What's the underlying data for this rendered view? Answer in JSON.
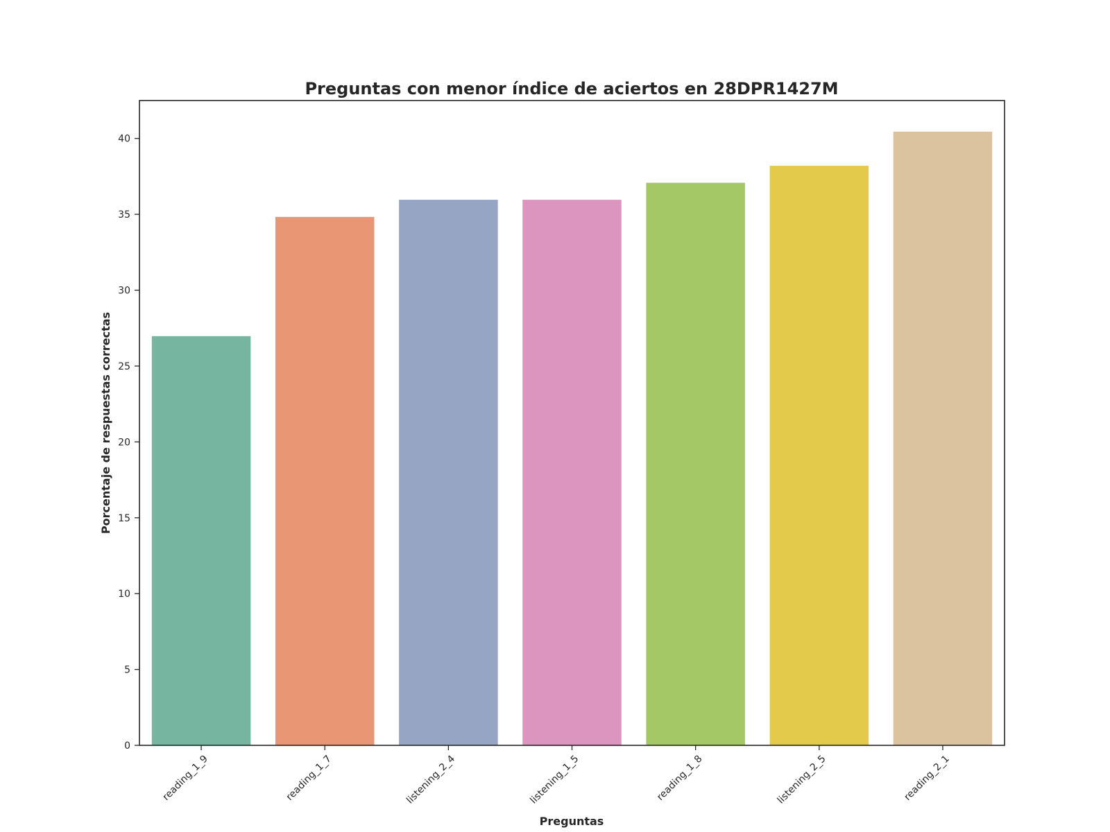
{
  "chart_data": {
    "type": "bar",
    "title": "Preguntas con menor índice de aciertos en 28DPR1427M",
    "xlabel": "Preguntas",
    "ylabel": "Porcentaje de respuestas correctas",
    "categories": [
      "reading_1_9",
      "reading_1_7",
      "listening_2_4",
      "listening_1_5",
      "reading_1_8",
      "listening_2_5",
      "reading_2_1"
    ],
    "values": [
      26.97,
      34.83,
      35.96,
      35.96,
      37.08,
      38.2,
      40.45
    ],
    "colors": [
      "#76b5a0",
      "#e99675",
      "#95a5c3",
      "#db95bf",
      "#a4c866",
      "#e4ca4a",
      "#dbc39f"
    ],
    "ylim": [
      0,
      42.5
    ],
    "yticks": [
      0,
      5,
      10,
      15,
      20,
      25,
      30,
      35,
      40
    ],
    "grid": false,
    "legend": "none"
  }
}
